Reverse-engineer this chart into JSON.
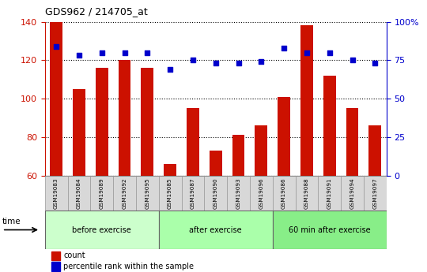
{
  "title": "GDS962 / 214705_at",
  "samples": [
    "GSM19083",
    "GSM19084",
    "GSM19089",
    "GSM19092",
    "GSM19095",
    "GSM19085",
    "GSM19087",
    "GSM19090",
    "GSM19093",
    "GSM19096",
    "GSM19086",
    "GSM19088",
    "GSM19091",
    "GSM19094",
    "GSM19097"
  ],
  "counts": [
    140,
    105,
    116,
    120,
    116,
    66,
    95,
    73,
    81,
    86,
    101,
    138,
    112,
    95,
    86
  ],
  "percentile_rank": [
    84,
    78,
    80,
    80,
    80,
    69,
    75,
    73,
    73,
    74,
    83,
    80,
    80,
    75,
    73
  ],
  "groups": [
    {
      "label": "before exercise",
      "start": 0,
      "end": 5,
      "color": "#ccffcc"
    },
    {
      "label": "after exercise",
      "start": 5,
      "end": 10,
      "color": "#aaffaa"
    },
    {
      "label": "60 min after exercise",
      "start": 10,
      "end": 15,
      "color": "#88ee88"
    }
  ],
  "ylim_left": [
    60,
    140
  ],
  "ylim_right": [
    0,
    100
  ],
  "left_ticks": [
    60,
    80,
    100,
    120,
    140
  ],
  "right_ticks": [
    0,
    25,
    50,
    75,
    100
  ],
  "right_tick_labels": [
    "0",
    "25",
    "50",
    "75",
    "100%"
  ],
  "bar_color": "#cc1100",
  "percentile_color": "#0000cc",
  "bar_width": 0.55,
  "left_tick_color": "#cc1100",
  "right_tick_color": "#0000cc",
  "grid_color": "#000000"
}
